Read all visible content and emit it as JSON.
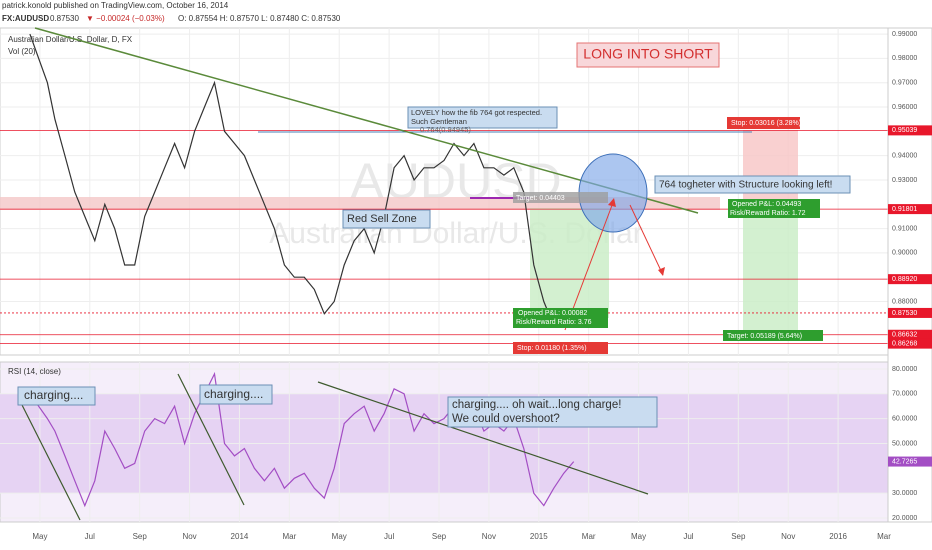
{
  "header": {
    "author_line": "patrick.konold published on TradingView.com, October 16, 2014",
    "symbol": "FX:AUDUSD",
    "last": "0.87530",
    "change": "▼ −0.00024 (−0.03%)",
    "ohlc": "O: 0.87554 H: 0.87570 L: 0.87480 C: 0.87530"
  },
  "chart_data": [
    {
      "type": "line",
      "title": "Australian Dollar/U.S. Dollar, D, FX",
      "subtitle": "Vol (20)",
      "watermark": [
        "AUDUSD",
        "Australian Dollar/U.S. Dollar"
      ],
      "color": "#333333",
      "x": [
        -0.4,
        0.3,
        0.6,
        1.0,
        1.4,
        1.8,
        2.2,
        2.6,
        3.0,
        3.4,
        3.8,
        4.2,
        4.6,
        5.0,
        5.4,
        5.8,
        6.2,
        6.6,
        7.0,
        7.4,
        7.8,
        8.2,
        8.6,
        9.0,
        9.4,
        9.8,
        10.2,
        10.6,
        11.0,
        11.4,
        11.8,
        12.2,
        12.6,
        13.0,
        13.4,
        13.8,
        14.2,
        14.6,
        15.0,
        15.4,
        15.8,
        16.2,
        16.6,
        17.0,
        17.4,
        17.8,
        18.2,
        18.6,
        19.0,
        19.4,
        19.8,
        20.2,
        20.6,
        21.0,
        21.4
      ],
      "values": [
        0.99,
        0.97,
        0.955,
        0.94,
        0.925,
        0.915,
        0.905,
        0.92,
        0.91,
        0.895,
        0.895,
        0.915,
        0.925,
        0.935,
        0.945,
        0.935,
        0.95,
        0.96,
        0.97,
        0.95,
        0.945,
        0.94,
        0.93,
        0.92,
        0.91,
        0.895,
        0.89,
        0.89,
        0.885,
        0.875,
        0.88,
        0.895,
        0.905,
        0.91,
        0.9,
        0.915,
        0.935,
        0.94,
        0.93,
        0.935,
        0.935,
        0.938,
        0.945,
        0.94,
        0.945,
        0.935,
        0.935,
        0.932,
        0.935,
        0.925,
        0.895,
        0.88,
        0.87,
        0.875,
        0.875
      ],
      "xlim": [
        -1.6,
        34.0
      ],
      "ylim": [
        0.858,
        0.9925
      ],
      "yticks": [
        {
          "value": 0.99,
          "label": "0.99000"
        },
        {
          "value": 0.98,
          "label": "0.98000"
        },
        {
          "value": 0.97,
          "label": "0.97000"
        },
        {
          "value": 0.96,
          "label": "0.96000"
        },
        {
          "value": 0.94,
          "label": "0.94000"
        },
        {
          "value": 0.93,
          "label": "0.93000"
        },
        {
          "value": 0.91,
          "label": "0.91000"
        },
        {
          "value": 0.9,
          "label": "0.90000"
        },
        {
          "value": 0.88,
          "label": "0.88000"
        }
      ],
      "price_flags": [
        {
          "value": 0.95039,
          "label": "0.95039",
          "color": "#e8172b"
        },
        {
          "value": 0.91801,
          "label": "0.91801",
          "color": "#e8172b"
        },
        {
          "value": 0.8892,
          "label": "0.88920",
          "color": "#e8172b"
        },
        {
          "value": 0.8753,
          "label": "0.87530",
          "color": "#e8172b"
        },
        {
          "value": 0.86632,
          "label": "0.86632",
          "color": "#e8172b"
        },
        {
          "value": 0.86268,
          "label": "0.86268",
          "color": "#e8172b"
        }
      ],
      "annotations": {
        "headline": "LONG INTO SHORT",
        "fib_note": [
          "LOVELY how the fib 764 got respected.",
          "Such Gentleman"
        ],
        "fib_level": "0.764(0.94945)",
        "zone": "Red Sell Zone",
        "structure": "764 togheter with Structure looking left!",
        "short_target": "Target: 0.04403",
        "short_pnl": [
          "Opened P&L: 0.00082",
          "Risk/Reward Ratio: 3.76"
        ],
        "short_stop": "Stop: 0.01180 (1.35%)",
        "long_stop": "Stop: 0.03016 (3.28%)",
        "long_pnl": [
          "Opened P&L: 0.04493",
          "Risk/Reward Ratio: 1.72"
        ],
        "long_target": "Target: 0.05189 (5.64%)"
      }
    },
    {
      "type": "line",
      "title": "RSI (14, close)",
      "color": "#a34ec4",
      "x": [
        -0.4,
        0.3,
        0.6,
        1.0,
        1.4,
        1.8,
        2.2,
        2.6,
        3.0,
        3.4,
        3.8,
        4.2,
        4.6,
        5.0,
        5.4,
        5.8,
        6.2,
        6.6,
        7.0,
        7.4,
        7.8,
        8.2,
        8.6,
        9.0,
        9.4,
        9.8,
        10.2,
        10.6,
        11.0,
        11.4,
        11.8,
        12.2,
        12.6,
        13.0,
        13.4,
        13.8,
        14.2,
        14.6,
        15.0,
        15.4,
        15.8,
        16.2,
        16.6,
        17.0,
        17.4,
        17.8,
        18.2,
        18.6,
        19.0,
        19.4,
        19.8,
        20.2,
        20.6,
        21.0,
        21.4
      ],
      "values": [
        70,
        60,
        55,
        45,
        35,
        25,
        35,
        55,
        48,
        40,
        42,
        55,
        60,
        58,
        65,
        50,
        62,
        70,
        78,
        50,
        45,
        48,
        40,
        35,
        40,
        32,
        36,
        38,
        32,
        28,
        40,
        58,
        62,
        65,
        55,
        62,
        72,
        70,
        55,
        62,
        58,
        60,
        65,
        58,
        65,
        55,
        58,
        55,
        60,
        48,
        30,
        25,
        32,
        38,
        42.7265
      ],
      "xlim": [
        -1.6,
        34.0
      ],
      "ylim": [
        18.4,
        82.8
      ],
      "xticks": [
        {
          "value": 0,
          "label": "May"
        },
        {
          "value": 2,
          "label": "Jul"
        },
        {
          "value": 4,
          "label": "Sep"
        },
        {
          "value": 6,
          "label": "Nov"
        },
        {
          "value": 8,
          "label": "2014"
        },
        {
          "value": 10,
          "label": "Mar"
        },
        {
          "value": 12,
          "label": "May"
        },
        {
          "value": 14,
          "label": "Jul"
        },
        {
          "value": 16,
          "label": "Sep"
        },
        {
          "value": 18,
          "label": "Nov"
        },
        {
          "value": 20,
          "label": "2015"
        },
        {
          "value": 22,
          "label": "Mar"
        },
        {
          "value": 24,
          "label": "May"
        },
        {
          "value": 26,
          "label": "Jul"
        },
        {
          "value": 28,
          "label": "Sep"
        },
        {
          "value": 30,
          "label": "Nov"
        },
        {
          "value": 32,
          "label": "2016"
        },
        {
          "value": 34,
          "label": "Mar"
        }
      ],
      "yticks": [
        {
          "value": 80,
          "label": "80.0000"
        },
        {
          "value": 70,
          "label": "70.0000"
        },
        {
          "value": 60,
          "label": "60.0000"
        },
        {
          "value": 50,
          "label": "50.0000"
        },
        {
          "value": 30,
          "label": "30.0000"
        },
        {
          "value": 20,
          "label": "20.0000"
        }
      ],
      "band": [
        30,
        70
      ],
      "last_flag": 42.7265,
      "annotations": {
        "first": "charging....",
        "second": "charging....",
        "third": [
          "charging.... oh wait...long charge!",
          "We could overshoot?"
        ]
      }
    }
  ]
}
